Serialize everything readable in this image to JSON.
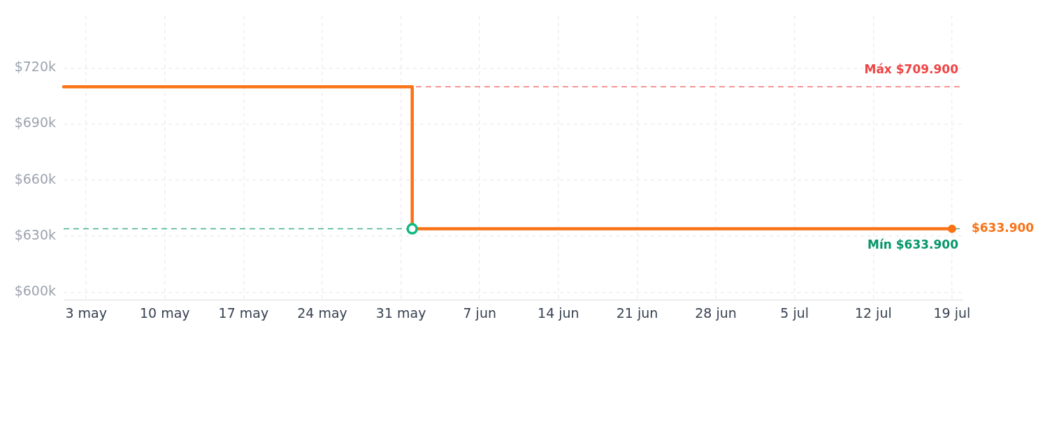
{
  "chart_data": {
    "type": "step",
    "series": [
      {
        "color": "#f97316",
        "x": [
          "--05-01",
          "--06-01",
          "--07-19"
        ],
        "values": [
          709900,
          633900,
          633900
        ],
        "marker": "none"
      },
      {
        "type": "scatter",
        "color": "#10b981",
        "x": [
          "--06-01"
        ],
        "values": [
          633900
        ],
        "marker": "circle"
      },
      {
        "type": "scatter",
        "color": "#f97316",
        "x": [
          "--07-19"
        ],
        "values": [
          633900
        ],
        "marker": "circle"
      }
    ],
    "xlim": [
      "--05-01",
      "--07-20"
    ],
    "xticks": [
      {
        "value": "--05-03",
        "label": "3 may"
      },
      {
        "value": "--05-10",
        "label": "10 may"
      },
      {
        "value": "--05-17",
        "label": "17 may"
      },
      {
        "value": "--05-24",
        "label": "24 may"
      },
      {
        "value": "--05-31",
        "label": "31 may"
      },
      {
        "value": "--06-07",
        "label": "7 jun"
      },
      {
        "value": "--06-14",
        "label": "14 jun"
      },
      {
        "value": "--06-21",
        "label": "21 jun"
      },
      {
        "value": "--06-28",
        "label": "28 jun"
      },
      {
        "value": "--07-05",
        "label": "5 jul"
      },
      {
        "value": "--07-12",
        "label": "12 jul"
      },
      {
        "value": "--07-19",
        "label": "19 jul"
      }
    ],
    "ylim": [
      596000,
      748000
    ],
    "yticks": [
      {
        "value": 600000,
        "label": "$600k"
      },
      {
        "value": 630000,
        "label": "$630k"
      },
      {
        "value": 660000,
        "label": "$660k"
      },
      {
        "value": 690000,
        "label": "$690k"
      },
      {
        "value": 720000,
        "label": "$720k"
      }
    ],
    "grid": true,
    "ref_lines": [
      {
        "axis": "y",
        "value": 709900,
        "label": "Máx $709.900",
        "color": "#ef4444",
        "line_style": "dashed"
      },
      {
        "axis": "y",
        "value": 633900,
        "label": "Mín $633.900",
        "color": "#059669",
        "line_style": "dashed"
      }
    ],
    "annotations": [
      {
        "text": "$633.900",
        "x": "--07-19",
        "y": 633900
      }
    ]
  }
}
